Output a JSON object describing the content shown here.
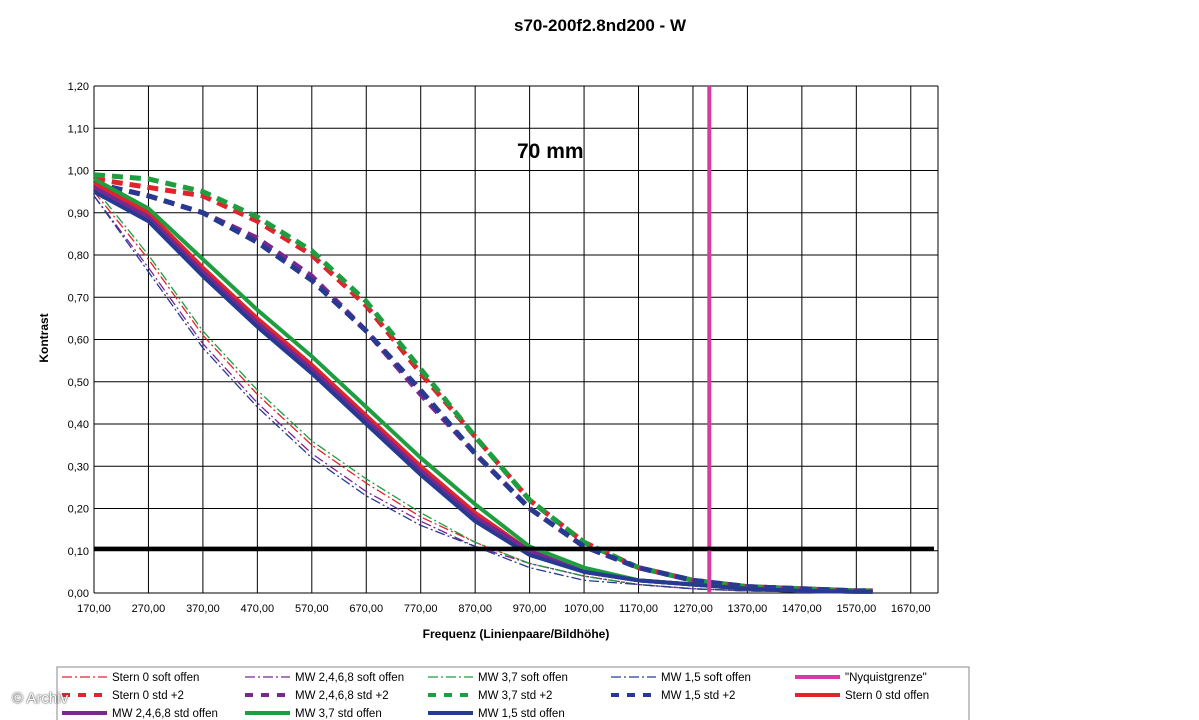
{
  "colors": {
    "red": "#e0242c",
    "purple": "#7a2790",
    "green": "#1f9e40",
    "blue": "#273a92",
    "magenta": "#d63aa3",
    "threshold": "#000000"
  },
  "credit": "© Archiv",
  "chart_data": {
    "type": "line",
    "title": "s70-200f2.8nd200 - W",
    "annotation": "70 mm",
    "xlabel": "Frequenz (Linienpaare/Bildhöhe)",
    "ylabel": "Kontrast",
    "xlim": [
      170,
      1720
    ],
    "ylim": [
      0,
      1.2
    ],
    "x_ticks": [
      "170,00",
      "270,00",
      "370,00",
      "470,00",
      "570,00",
      "670,00",
      "770,00",
      "870,00",
      "970,00",
      "1070,00",
      "1170,00",
      "1270,00",
      "1370,00",
      "1470,00",
      "1570,00",
      "1670,00"
    ],
    "y_ticks": [
      "0,00",
      "0,10",
      "0,20",
      "0,30",
      "0,40",
      "0,50",
      "0,60",
      "0,70",
      "0,80",
      "0,90",
      "1,00",
      "1,10",
      "1,20"
    ],
    "grid": true,
    "legend_position": "bottom",
    "x": [
      170,
      270,
      370,
      470,
      570,
      670,
      770,
      870,
      970,
      1070,
      1170,
      1270,
      1370,
      1470,
      1570,
      1600
    ],
    "series": [
      {
        "name": "Stern 0 soft offen",
        "color": "red",
        "style": "dashdot",
        "values": [
          0.95,
          0.79,
          0.61,
          0.47,
          0.35,
          0.26,
          0.18,
          0.12,
          0.07,
          0.04,
          0.02,
          0.01,
          0.005,
          0.003,
          0.002,
          0.002
        ]
      },
      {
        "name": "MW 2,4,6,8 soft offen",
        "color": "purple",
        "style": "dashdot",
        "values": [
          0.94,
          0.77,
          0.59,
          0.45,
          0.33,
          0.24,
          0.17,
          0.11,
          0.07,
          0.04,
          0.02,
          0.01,
          0.005,
          0.003,
          0.002,
          0.002
        ]
      },
      {
        "name": "MW 3,7 soft offen",
        "color": "green",
        "style": "dashdot",
        "values": [
          0.96,
          0.8,
          0.62,
          0.48,
          0.36,
          0.27,
          0.19,
          0.12,
          0.07,
          0.04,
          0.02,
          0.01,
          0.005,
          0.003,
          0.002,
          0.002
        ]
      },
      {
        "name": "MW 1,5 soft offen",
        "color": "blue",
        "style": "dashdot",
        "values": [
          0.94,
          0.76,
          0.58,
          0.44,
          0.32,
          0.23,
          0.16,
          0.11,
          0.06,
          0.03,
          0.02,
          0.01,
          0.005,
          0.003,
          0.002,
          0.002
        ]
      },
      {
        "name": "\"Nyquistgrenze\"",
        "color": "magenta",
        "style": "vertical",
        "x_value": 1300
      },
      {
        "name": "Stern 0 std +2",
        "color": "red",
        "style": "dash",
        "values": [
          0.98,
          0.96,
          0.94,
          0.88,
          0.8,
          0.68,
          0.52,
          0.37,
          0.22,
          0.12,
          0.06,
          0.03,
          0.015,
          0.01,
          0.005,
          0.005
        ]
      },
      {
        "name": "MW 2,4,6,8 std +2",
        "color": "purple",
        "style": "dash",
        "values": [
          0.97,
          0.94,
          0.9,
          0.84,
          0.75,
          0.62,
          0.47,
          0.33,
          0.2,
          0.11,
          0.06,
          0.03,
          0.015,
          0.01,
          0.005,
          0.005
        ]
      },
      {
        "name": "MW 3,7 std +2",
        "color": "green",
        "style": "dash",
        "values": [
          0.99,
          0.98,
          0.95,
          0.89,
          0.81,
          0.69,
          0.53,
          0.37,
          0.22,
          0.12,
          0.06,
          0.03,
          0.015,
          0.01,
          0.005,
          0.005
        ]
      },
      {
        "name": "MW 1,5 std +2",
        "color": "blue",
        "style": "dash",
        "values": [
          0.97,
          0.94,
          0.9,
          0.83,
          0.74,
          0.62,
          0.48,
          0.33,
          0.2,
          0.11,
          0.06,
          0.03,
          0.015,
          0.01,
          0.005,
          0.005
        ]
      },
      {
        "name": "Stern 0 std offen",
        "color": "red",
        "style": "solid",
        "values": [
          0.97,
          0.9,
          0.77,
          0.65,
          0.54,
          0.42,
          0.3,
          0.19,
          0.1,
          0.05,
          0.03,
          0.02,
          0.01,
          0.005,
          0.003,
          0.003
        ]
      },
      {
        "name": "MW 2,4,6,8 std offen",
        "color": "purple",
        "style": "solid",
        "values": [
          0.96,
          0.89,
          0.76,
          0.64,
          0.53,
          0.41,
          0.29,
          0.18,
          0.1,
          0.05,
          0.03,
          0.02,
          0.01,
          0.005,
          0.003,
          0.003
        ]
      },
      {
        "name": "MW 3,7 std offen",
        "color": "green",
        "style": "solid",
        "values": [
          0.98,
          0.91,
          0.79,
          0.67,
          0.56,
          0.44,
          0.32,
          0.21,
          0.11,
          0.06,
          0.03,
          0.02,
          0.01,
          0.005,
          0.003,
          0.003
        ]
      },
      {
        "name": "MW 1,5 std offen",
        "color": "blue",
        "style": "solid",
        "values": [
          0.95,
          0.88,
          0.75,
          0.63,
          0.52,
          0.4,
          0.28,
          0.17,
          0.09,
          0.05,
          0.03,
          0.02,
          0.01,
          0.005,
          0.003,
          0.003
        ]
      }
    ],
    "threshold": {
      "y_value": 0.105,
      "color": "threshold"
    }
  }
}
